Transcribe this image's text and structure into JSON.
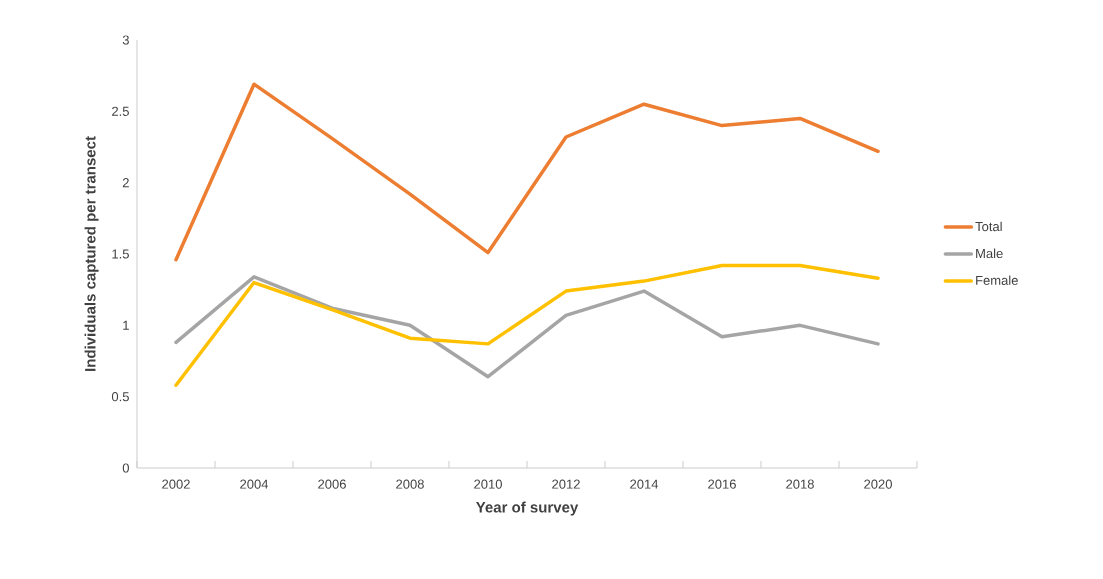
{
  "chart_data": {
    "type": "line",
    "xlabel": "Year of survey",
    "ylabel": "Individuals captured per transect",
    "categories": [
      "2002",
      "2004",
      "2006",
      "2008",
      "2010",
      "2012",
      "2014",
      "2016",
      "2018",
      "2020"
    ],
    "series": [
      {
        "name": "Total",
        "color": "#ed7d31",
        "values": [
          1.46,
          2.69,
          2.31,
          1.92,
          1.51,
          2.32,
          2.55,
          2.4,
          2.45,
          2.22
        ]
      },
      {
        "name": "Male",
        "color": "#a5a5a5",
        "values": [
          0.88,
          1.34,
          1.12,
          1.0,
          0.64,
          1.07,
          1.24,
          0.92,
          1.0,
          0.87
        ]
      },
      {
        "name": "Female",
        "color": "#ffc000",
        "values": [
          0.58,
          1.3,
          1.11,
          0.91,
          0.87,
          1.24,
          1.31,
          1.42,
          1.42,
          1.33
        ]
      }
    ],
    "ylim": [
      0,
      3
    ],
    "yticks": [
      0,
      0.5,
      1,
      1.5,
      2,
      2.5,
      3
    ],
    "grid": false,
    "legend": "right",
    "marker": "none",
    "line_style": "solid"
  }
}
